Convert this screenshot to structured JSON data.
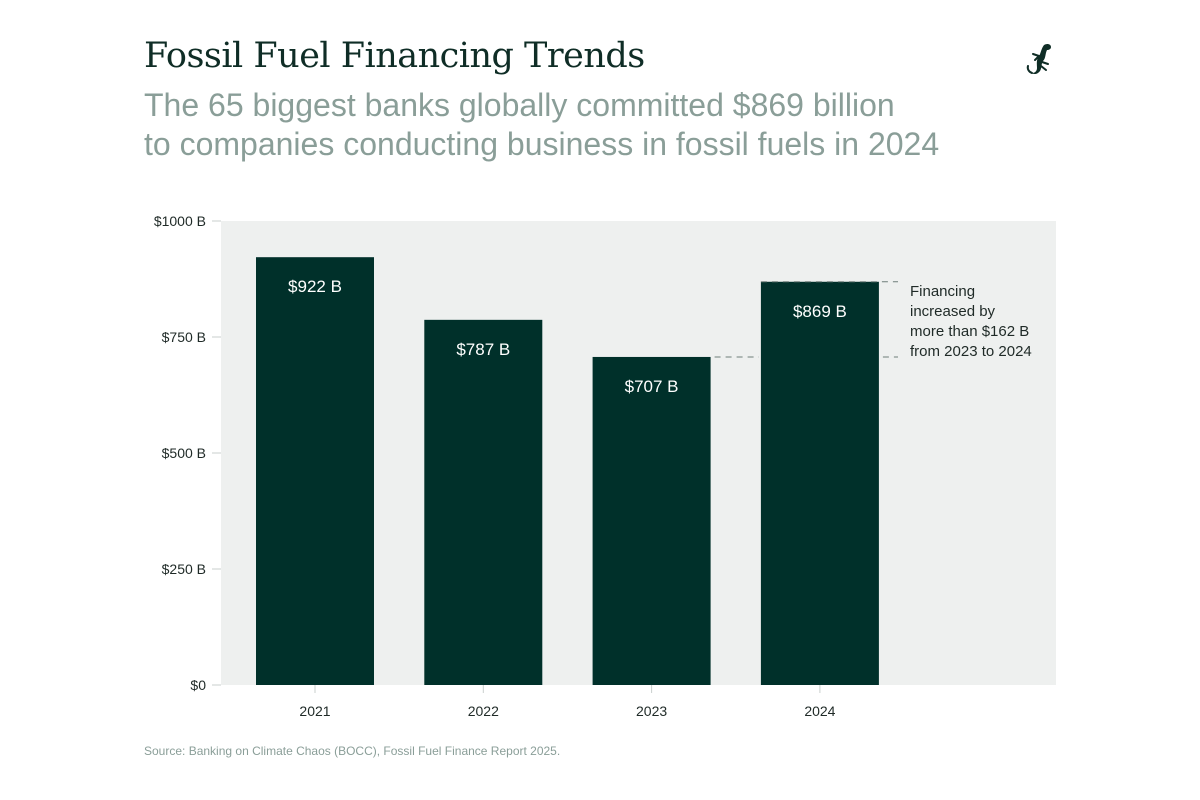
{
  "header": {
    "title": "Fossil Fuel Financing Trends",
    "subtitle_line1": "The 65 biggest banks globally committed $869 billion",
    "subtitle_line2": "to companies conducting business in fossil fuels in 2024",
    "logo_icon": "gecko-icon"
  },
  "chart_data": {
    "type": "bar",
    "title": "",
    "xlabel": "",
    "ylabel": "",
    "categories": [
      "2021",
      "2022",
      "2023",
      "2024"
    ],
    "values": [
      922,
      787,
      707,
      869
    ],
    "data_labels": [
      "$922 B",
      "$787 B",
      "$707 B",
      "$869 B"
    ],
    "ylim": [
      0,
      1000
    ],
    "yticks": [
      0,
      250,
      500,
      750,
      1000
    ],
    "ytick_labels": [
      "$0",
      "$250 B",
      "$500 B",
      "$750 B",
      "$1000 B"
    ],
    "grid": false,
    "annotation": {
      "lines": [
        "Financing",
        "increased by",
        "more than $162 B",
        "from 2023 to 2024"
      ],
      "from_value": 707,
      "to_value": 869
    },
    "colors": {
      "bar": "#00302a",
      "plot_background": "#eef0ef",
      "accent_text": "#8a9e98"
    }
  },
  "footer": {
    "source": "Source: Banking on Climate Chaos (BOCC), Fossil Fuel Finance Report 2025."
  }
}
